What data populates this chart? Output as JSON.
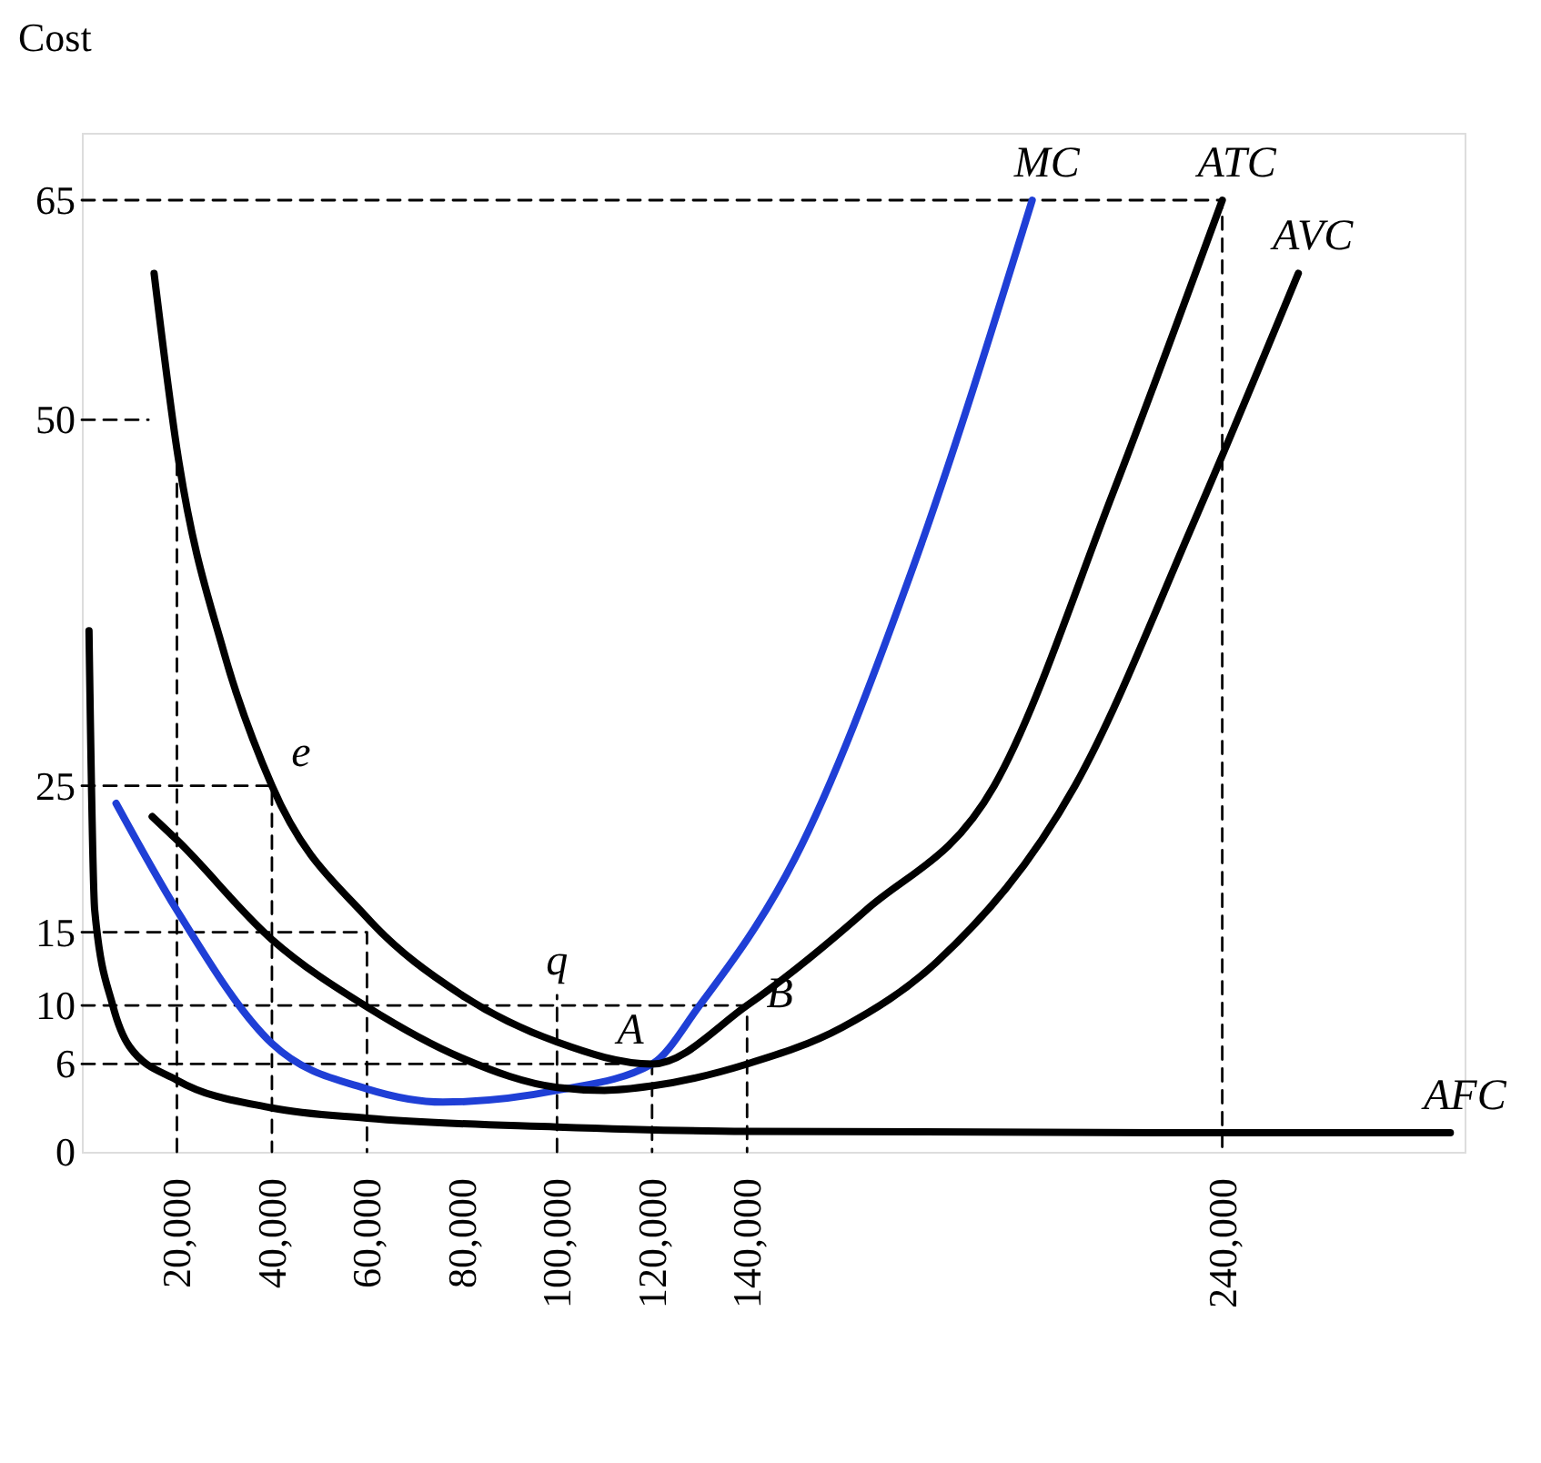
{
  "chart_data": {
    "type": "line",
    "ylabel": "Cost",
    "xlim": [
      0,
      291000
    ],
    "ylim": [
      0,
      69.6
    ],
    "xticks": [
      {
        "value": 20000,
        "label": "20,000"
      },
      {
        "value": 40000,
        "label": "40,000"
      },
      {
        "value": 60000,
        "label": "60,000"
      },
      {
        "value": 80000,
        "label": "80,000"
      },
      {
        "value": 100000,
        "label": "100,000"
      },
      {
        "value": 120000,
        "label": "120,000"
      },
      {
        "value": 140000,
        "label": "140,000"
      },
      {
        "value": 240000,
        "label": "240,000"
      }
    ],
    "yticks": [
      0,
      6,
      10,
      15,
      25,
      50,
      65
    ],
    "grid": false,
    "series": [
      {
        "type": "line",
        "line_style": "dashed",
        "color": "#000000",
        "x": [
          0,
          240000,
          240000
        ],
        "values": [
          65,
          65,
          0
        ]
      },
      {
        "type": "line",
        "line_style": "dashed",
        "color": "#000000",
        "x": [
          0,
          14000
        ],
        "values": [
          50,
          50
        ]
      },
      {
        "type": "line",
        "line_style": "dashed",
        "color": "#000000",
        "x": [
          20000,
          20000
        ],
        "values": [
          0,
          47.8
        ]
      },
      {
        "type": "line",
        "line_style": "dashed",
        "color": "#000000",
        "x": [
          0,
          40000,
          40000
        ],
        "values": [
          25,
          25,
          0
        ]
      },
      {
        "type": "line",
        "line_style": "dashed",
        "color": "#000000",
        "x": [
          0,
          60000,
          60000
        ],
        "values": [
          15,
          15,
          0
        ]
      },
      {
        "type": "line",
        "line_style": "dashed",
        "color": "#000000",
        "x": [
          0,
          140000,
          140000
        ],
        "values": [
          10,
          10,
          0
        ]
      },
      {
        "type": "line",
        "line_style": "dashed",
        "color": "#000000",
        "x": [
          0,
          120000,
          120000
        ],
        "values": [
          6,
          6,
          0
        ]
      },
      {
        "type": "line",
        "line_style": "dashed",
        "color": "#000000",
        "x": [
          100000,
          100000
        ],
        "values": [
          0,
          10.7
        ]
      },
      {
        "type": "line",
        "line_style": "solid",
        "name": "MC",
        "color": "#1f3fd6",
        "x": [
          7200,
          20000,
          40000,
          60000,
          76000,
          100000,
          120000,
          130000,
          150000,
          175000,
          200000
        ],
        "values": [
          23.8,
          16.5,
          7.4,
          4.3,
          3.4,
          4.2,
          6,
          10,
          20,
          40,
          65
        ]
      },
      {
        "type": "line",
        "line_style": "solid",
        "name": "ATC",
        "color": "#000000",
        "x": [
          15200,
          20000,
          30000,
          40000,
          60000,
          80000,
          100000,
          120000,
          140000,
          165000,
          192000,
          217000,
          240000
        ],
        "values": [
          60,
          48,
          34,
          25,
          16,
          10.7,
          7.5,
          6,
          10,
          16.5,
          25,
          45,
          65
        ]
      },
      {
        "type": "line",
        "line_style": "solid",
        "name": "AVC",
        "color": "#000000",
        "x": [
          14800,
          20000,
          40000,
          60000,
          80000,
          100000,
          110000,
          120000,
          140000,
          160000,
          180000,
          209000,
          234000,
          256000
        ],
        "values": [
          22.9,
          21.3,
          14.5,
          9.9,
          6.4,
          4.4,
          4.2,
          4.5,
          6,
          8.5,
          13,
          25,
          43,
          60
        ]
      },
      {
        "type": "line",
        "line_style": "solid",
        "name": "AFC",
        "color": "#000000",
        "x": [
          1500,
          2700,
          6500,
          10000,
          20000,
          40000,
          60000,
          100000,
          140000,
          240000,
          288000
        ],
        "values": [
          35.6,
          16.5,
          10,
          7.2,
          4.9,
          3,
          2.3,
          1.7,
          1.4,
          1.3,
          1.3
        ]
      }
    ],
    "annotations": [
      {
        "text": "e",
        "x": 40000,
        "y": 25
      },
      {
        "text": "q",
        "x": 100000,
        "y": 10
      },
      {
        "text": "A",
        "x": 120000,
        "y": 6
      },
      {
        "text": "B",
        "x": 140000,
        "y": 10
      }
    ]
  }
}
